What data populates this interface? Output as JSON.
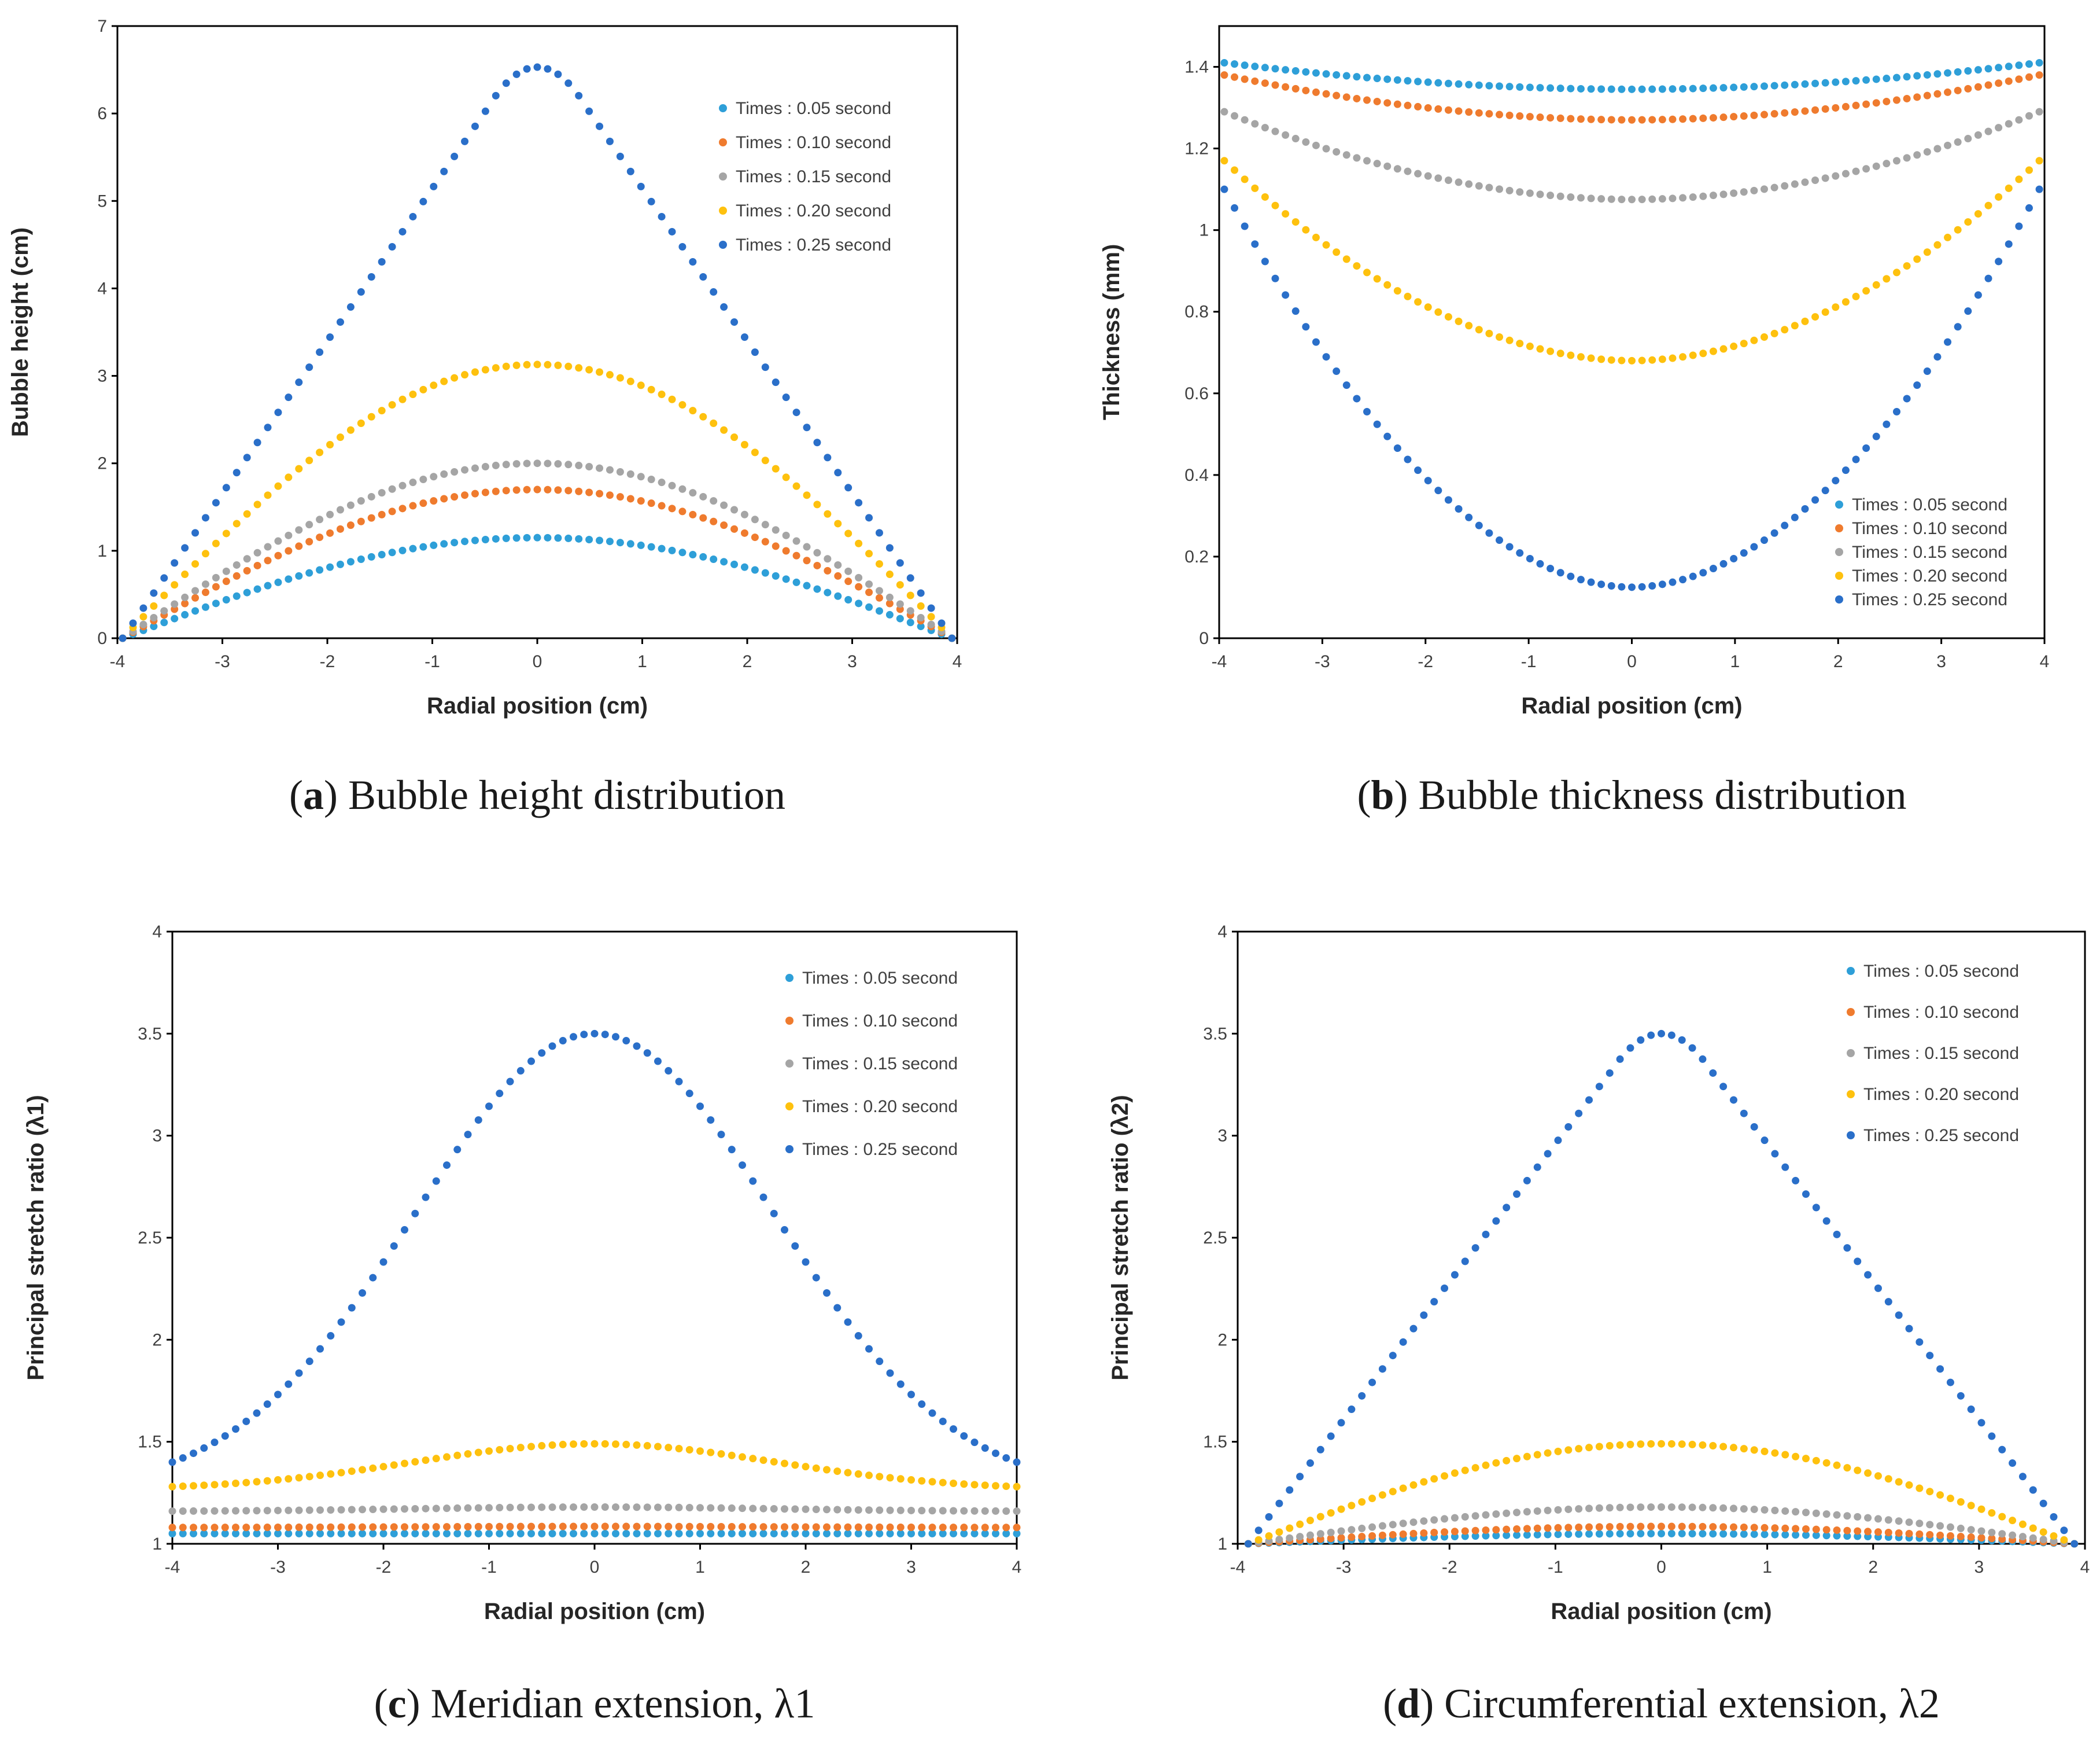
{
  "colors": {
    "Times : 0.05 second": "#2e9fd8",
    "Times : 0.10 second": "#ef7b2e",
    "Times : 0.15 second": "#a5a5a5",
    "Times : 0.20 second": "#fec10e",
    "Times : 0.25 second": "#2a6fc9"
  },
  "chart_data": [
    {
      "id": "a",
      "type": "scatter",
      "caption_letter": "a",
      "caption_text": "Bubble height distribution",
      "xlabel": "Radial position (cm)",
      "ylabel": "Bubble height  (cm)",
      "xlim": [
        -4,
        4
      ],
      "ylim": [
        0,
        7
      ],
      "xticks": [
        -4,
        -3,
        -2,
        -1,
        0,
        1,
        2,
        3,
        4
      ],
      "yticks": [
        0,
        1,
        2,
        3,
        4,
        5,
        6,
        7
      ],
      "grid": false,
      "legend_position": "top-right",
      "series": [
        {
          "name": "Times : 0.05 second",
          "profile": "cos",
          "x_range": [
            -3.95,
            3.95
          ],
          "edge": 0,
          "center": 1.15
        },
        {
          "name": "Times : 0.10 second",
          "profile": "cos",
          "x_range": [
            -3.95,
            3.95
          ],
          "edge": 0,
          "center": 1.7
        },
        {
          "name": "Times : 0.15 second",
          "profile": "cos",
          "x_range": [
            -3.95,
            3.95
          ],
          "edge": 0,
          "center": 2.0
        },
        {
          "name": "Times : 0.20 second",
          "profile": "cos",
          "x_range": [
            -3.95,
            3.95
          ],
          "edge": 0,
          "center": 3.13
        },
        {
          "name": "Times : 0.25 second",
          "profile": "cone",
          "x_range": [
            -3.95,
            3.95
          ],
          "edge": 0,
          "center": 6.53
        }
      ]
    },
    {
      "id": "b",
      "type": "scatter",
      "caption_letter": "b",
      "caption_text": "Bubble thickness distribution",
      "xlabel": "Radial position (cm)",
      "ylabel": "Thickness (mm)",
      "xlim": [
        -4,
        4
      ],
      "ylim": [
        0,
        1.5
      ],
      "xticks": [
        -4,
        -3,
        -2,
        -1,
        0,
        1,
        2,
        3,
        4
      ],
      "yticks": [
        0,
        0.2,
        0.4,
        0.6,
        0.8,
        1,
        1.2,
        1.4
      ],
      "yticklabels": [
        "0",
        "0.2",
        "0.4",
        "0.6",
        "0.8",
        "1",
        "1.2",
        "1.4"
      ],
      "grid": false,
      "legend_position": "bottom-right",
      "series": [
        {
          "name": "Times : 0.05 second",
          "profile": "bowl",
          "x_range": [
            -3.95,
            3.95
          ],
          "edge": 1.41,
          "center": 1.345
        },
        {
          "name": "Times : 0.10 second",
          "profile": "bowl",
          "x_range": [
            -3.95,
            3.95
          ],
          "edge": 1.38,
          "center": 1.27
        },
        {
          "name": "Times : 0.15 second",
          "profile": "bowl",
          "x_range": [
            -3.95,
            3.95
          ],
          "edge": 1.29,
          "center": 1.075
        },
        {
          "name": "Times : 0.20 second",
          "profile": "bowl",
          "x_range": [
            -3.95,
            3.95
          ],
          "edge": 1.17,
          "center": 0.68
        },
        {
          "name": "Times : 0.25 second",
          "profile": "bowl",
          "x_range": [
            -3.95,
            3.95
          ],
          "edge": 1.1,
          "center": 0.125
        }
      ]
    },
    {
      "id": "c",
      "type": "scatter",
      "caption_letter": "c",
      "caption_text": "Meridian extension, λ1",
      "xlabel": "Radial position (cm)",
      "ylabel": "Principal stretch ratio (λ1)",
      "xlim": [
        -4,
        4
      ],
      "ylim": [
        1,
        4
      ],
      "xticks": [
        -4,
        -3,
        -2,
        -1,
        0,
        1,
        2,
        3,
        4
      ],
      "yticks": [
        1,
        1.5,
        2,
        2.5,
        3,
        3.5,
        4
      ],
      "grid": false,
      "legend_position": "top-right",
      "series": [
        {
          "name": "Times : 0.05 second",
          "profile": "gauss",
          "x_range": [
            -4,
            4
          ],
          "edge": 1.05,
          "center": 1.05
        },
        {
          "name": "Times : 0.10 second",
          "profile": "gauss",
          "x_range": [
            -4,
            4
          ],
          "edge": 1.08,
          "center": 1.085
        },
        {
          "name": "Times : 0.15 second",
          "profile": "gauss",
          "x_range": [
            -4,
            4
          ],
          "edge": 1.16,
          "center": 1.18
        },
        {
          "name": "Times : 0.20 second",
          "profile": "gauss",
          "x_range": [
            -4,
            4
          ],
          "edge": 1.28,
          "center": 1.49
        },
        {
          "name": "Times : 0.25 second",
          "profile": "gauss",
          "x_range": [
            -4,
            4
          ],
          "edge": 1.4,
          "center": 3.5
        }
      ]
    },
    {
      "id": "d",
      "type": "scatter",
      "caption_letter": "d",
      "caption_text": "Circumferential extension, λ2",
      "xlabel": "Radial position (cm)",
      "ylabel": "Principal stretch ratio (λ2)",
      "xlim": [
        -4,
        4
      ],
      "ylim": [
        1,
        4
      ],
      "xticks": [
        -4,
        -3,
        -2,
        -1,
        0,
        1,
        2,
        3,
        4
      ],
      "yticks": [
        1,
        1.5,
        2,
        2.5,
        3,
        3.5,
        4
      ],
      "grid": false,
      "legend_position": "top-right",
      "series": [
        {
          "name": "Times : 0.05 second",
          "profile": "cos",
          "x_range": [
            -3.9,
            3.9
          ],
          "edge": 1.0,
          "center": 1.05
        },
        {
          "name": "Times : 0.10 second",
          "profile": "cos",
          "x_range": [
            -3.9,
            3.9
          ],
          "edge": 1.0,
          "center": 1.085
        },
        {
          "name": "Times : 0.15 second",
          "profile": "cos",
          "x_range": [
            -3.9,
            3.9
          ],
          "edge": 1.0,
          "center": 1.18
        },
        {
          "name": "Times : 0.20 second",
          "profile": "cos",
          "x_range": [
            -3.9,
            3.9
          ],
          "edge": 1.0,
          "center": 1.49
        },
        {
          "name": "Times : 0.25 second",
          "profile": "cone",
          "x_range": [
            -3.9,
            3.9
          ],
          "edge": 1.0,
          "center": 3.5
        }
      ]
    }
  ]
}
